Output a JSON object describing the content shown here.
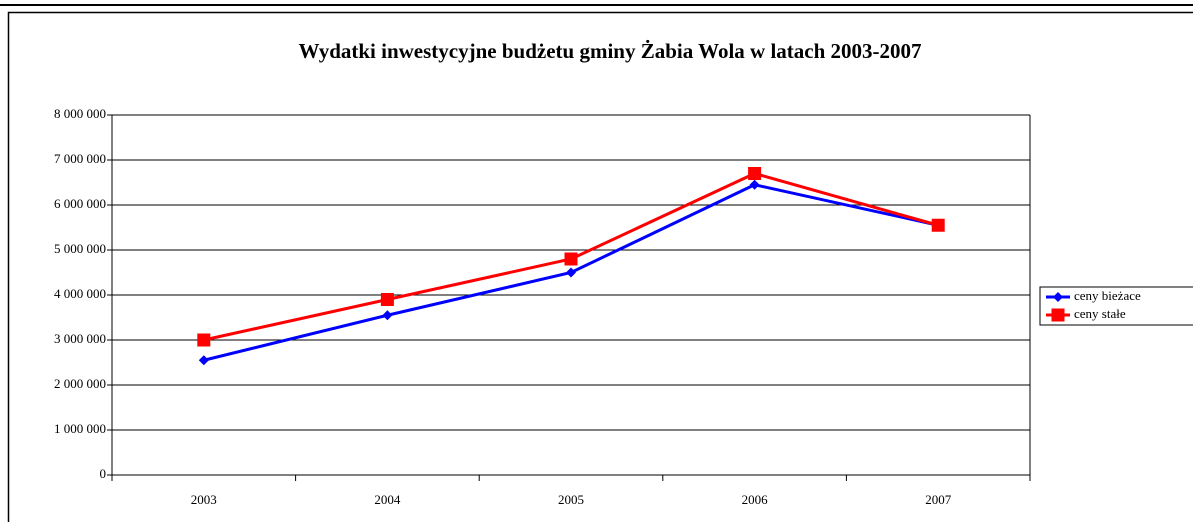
{
  "chart_data": {
    "type": "line",
    "title": "Wydatki inwestycyjne budżetu gminy Żabia Wola w latach  2003-2007",
    "categories": [
      "2003",
      "2004",
      "2005",
      "2006",
      "2007"
    ],
    "series": [
      {
        "name": "ceny bieżace",
        "color": "#0000ff",
        "marker": "diamond",
        "values": [
          2550000,
          3550000,
          4500000,
          6450000,
          5550000
        ]
      },
      {
        "name": "ceny stałe",
        "color": "#ff0000",
        "marker": "square",
        "values": [
          3000000,
          3900000,
          4800000,
          6700000,
          5550000
        ]
      }
    ],
    "ylim": [
      0,
      8000000
    ],
    "yticks": [
      0,
      {
        "value": 1000000,
        "label": "1 000 000"
      },
      {
        "value": 2000000,
        "label": "2 000 000"
      },
      {
        "value": 3000000,
        "label": "3 000 000"
      },
      {
        "value": 4000000,
        "label": "4 000 000"
      },
      {
        "value": 5000000,
        "label": "5 000 000"
      },
      {
        "value": 6000000,
        "label": "6 000 000"
      },
      {
        "value": 7000000,
        "label": "7 000 000"
      },
      {
        "value": 8000000,
        "label": "8 000 000"
      }
    ],
    "grid": true,
    "legend": "right"
  }
}
